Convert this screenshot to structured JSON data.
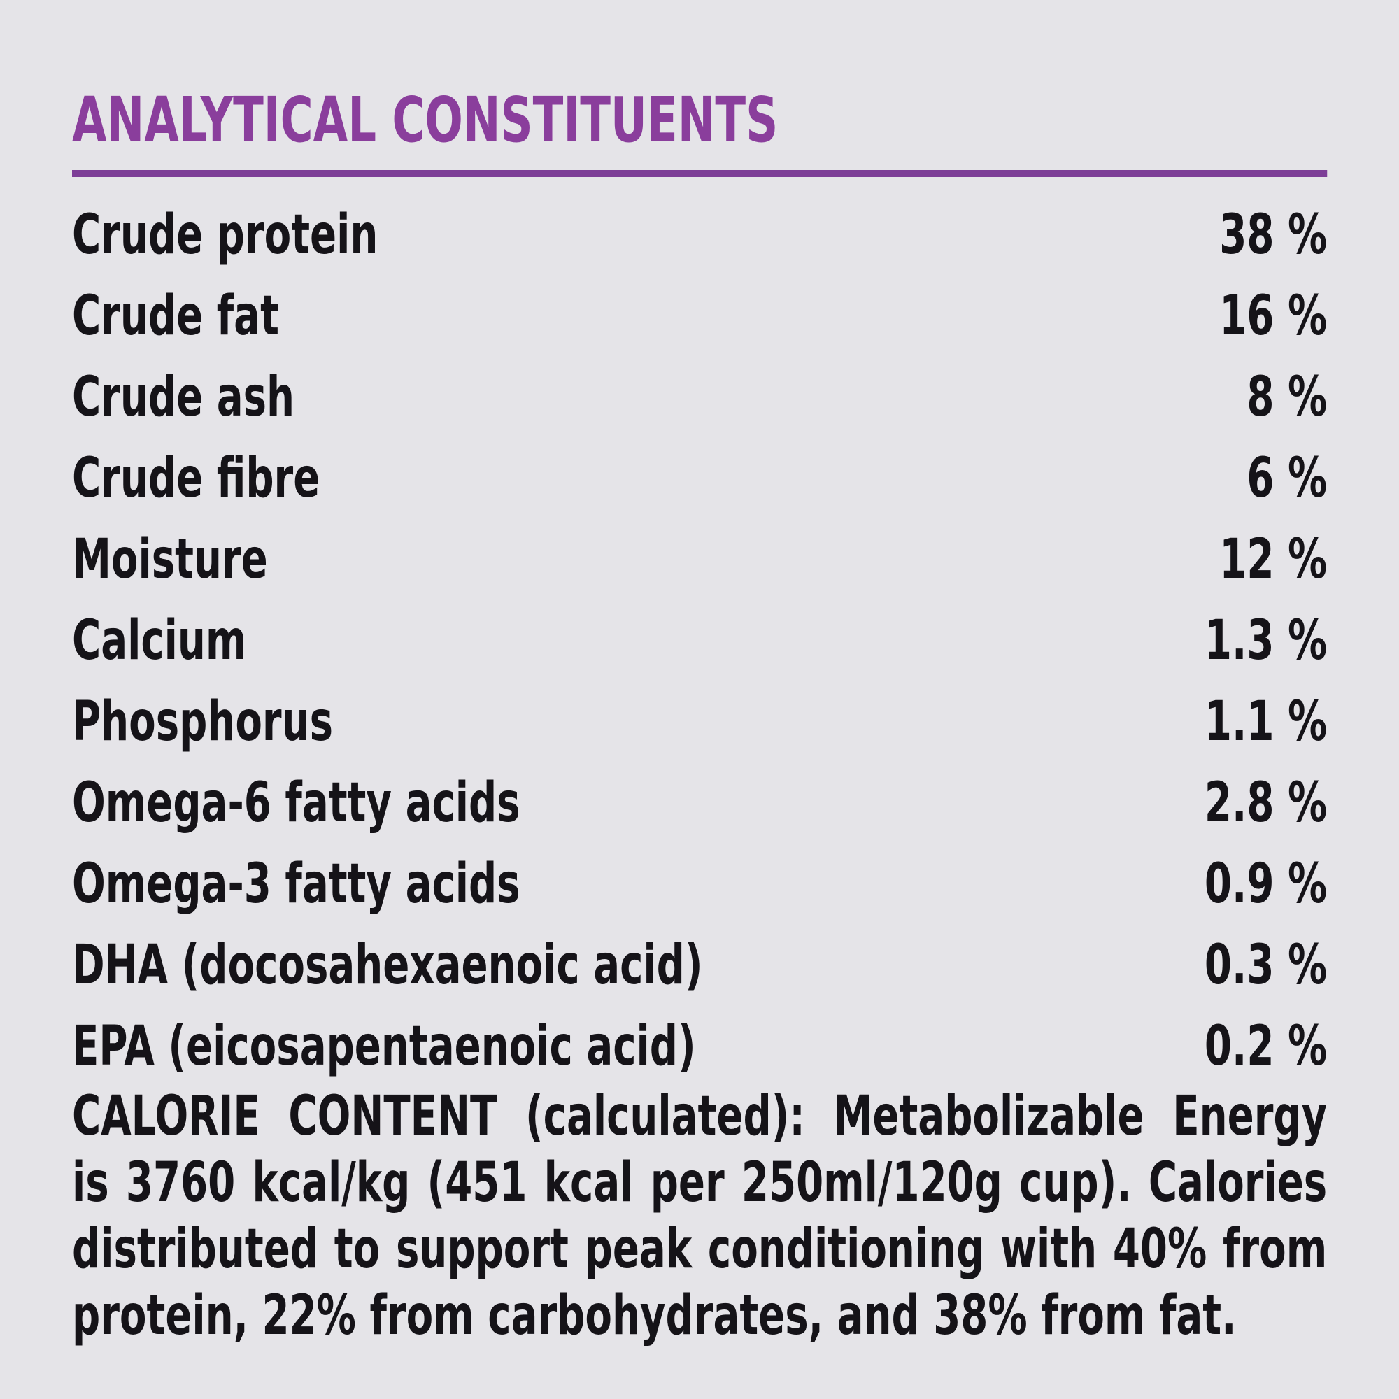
{
  "title": "ANALYTICAL CONSTITUENTS",
  "colors": {
    "title_purple": "#8a3e9c",
    "rule_purple": "#7d3e97",
    "background": "#e5e4e8",
    "text": "#151318"
  },
  "constituents": [
    {
      "label": "Crude protein",
      "value": "38 %"
    },
    {
      "label": "Crude fat",
      "value": "16 %"
    },
    {
      "label": "Crude ash",
      "value": "8 %"
    },
    {
      "label": "Crude fibre",
      "value": "6 %"
    },
    {
      "label": "Moisture",
      "value": "12 %"
    },
    {
      "label": "Calcium",
      "value": "1.3 %"
    },
    {
      "label": "Phosphorus",
      "value": "1.1 %"
    },
    {
      "label": "Omega-6 fatty acids",
      "value": "2.8 %"
    },
    {
      "label": "Omega-3 fatty acids",
      "value": "0.9 %"
    },
    {
      "label": "DHA (docosahexaenoic acid)",
      "value": "0.3 %"
    },
    {
      "label": "EPA (eicosapentaenoic acid)",
      "value": "0.2 %"
    }
  ],
  "calorie_content": {
    "full_text": "CALORIE CONTENT (calculated): Metabolizable Energy is 3760 kcal/kg (451 kcal per 250ml/120g cup). Calories distributed to support peak conditioning with 40% from protein, 22% from carbohydrates, and 38% from fat.",
    "lines": [
      "CALORIE CONTENT (calculated): Metabolizable Energy",
      "is 3760 kcal/kg (451 kcal per 250ml/120g cup). Calories",
      "distributed to support peak conditioning with 40% from",
      "protein, 22% from carbohydrates, and 38% from fat."
    ]
  }
}
